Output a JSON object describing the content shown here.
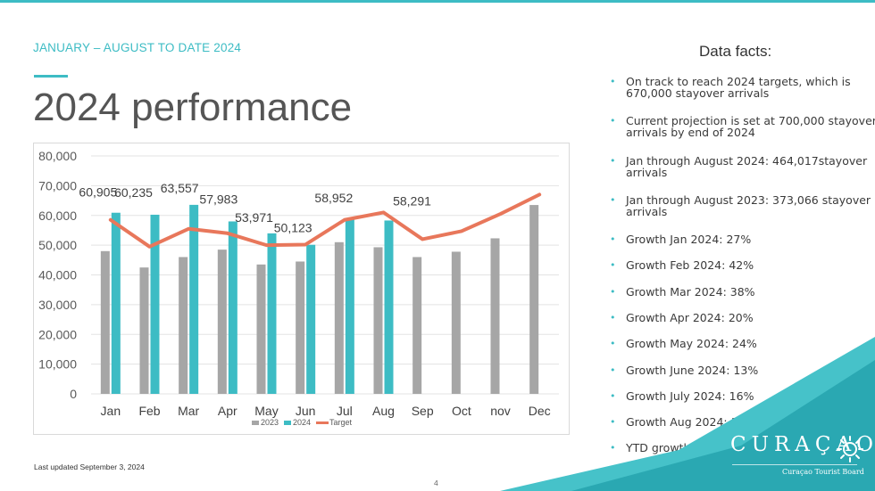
{
  "header": {
    "kicker": "JANUARY – AUGUST TO DATE 2024",
    "title": "2024 performance"
  },
  "facts": {
    "heading": "Data facts:",
    "items": [
      "On track to reach 2024 targets, which is 670,000 stayover arrivals",
      "Current projection is set at 700,000 stayover arrivals by end of 2024",
      "Jan through August 2024: 464,017stayover arrivals",
      "Jan through August 2023: 373,066 stayover arrivals",
      "Growth Jan 2024: 27%",
      "Growth Feb 2024: 42%",
      "Growth Mar 2024: 38%",
      "Growth Apr 2024: 20%",
      "Growth May 2024: 24%",
      "Growth June 2024: 13%",
      "Growth July 2024: 16%",
      "Growth Aug 2024: 18%",
      "YTD growth: 24%"
    ]
  },
  "footer": {
    "updated": "Last updated September 3,  2024",
    "page": "4"
  },
  "logo": {
    "name": "CURAÇAO",
    "sub": "Curaçao Tourist Board"
  },
  "colors": {
    "accent": "#3dbcc4",
    "series_2023": "#a6a6a6",
    "series_2024": "#3dbcc4",
    "target": "#e8775b"
  },
  "chart_data": {
    "type": "bar",
    "categories": [
      "Jan",
      "Feb",
      "Mar",
      "Apr",
      "May",
      "Jun",
      "Jul",
      "Aug",
      "Sep",
      "Oct",
      "nov",
      "Dec"
    ],
    "series": [
      {
        "name": "2023",
        "type": "bar",
        "values": [
          48000,
          42500,
          46000,
          48500,
          43500,
          44500,
          51000,
          49300,
          46000,
          47800,
          52300,
          63500
        ]
      },
      {
        "name": "2024",
        "type": "bar",
        "values": [
          60905,
          60235,
          63557,
          57983,
          53971,
          50123,
          58952,
          58291,
          null,
          null,
          null,
          null
        ],
        "data_labels": [
          "60,905",
          "60,235",
          "63,557",
          "57,983",
          "53,971",
          "50,123",
          "58,952",
          "58,291"
        ]
      },
      {
        "name": "Target",
        "type": "line",
        "values": [
          58500,
          49500,
          55500,
          54000,
          50000,
          50200,
          58500,
          61000,
          52000,
          54700,
          60500,
          67000
        ]
      }
    ],
    "ylim": [
      0,
      80000
    ],
    "yticks": [
      "0",
      "10,000",
      "20,000",
      "30,000",
      "40,000",
      "50,000",
      "60,000",
      "70,000",
      "80,000"
    ],
    "grid": true,
    "legend": "bottom"
  }
}
